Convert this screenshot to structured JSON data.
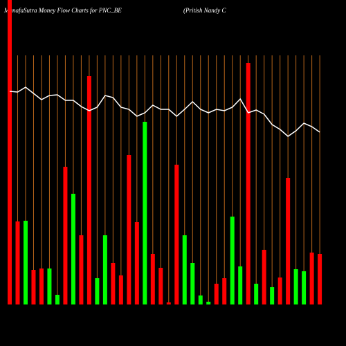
{
  "chart_data": {
    "type": "bar",
    "title": "MunafaSutra  Money Flow  Charts for PNC_BE",
    "subtitle": "(Pritish Nandy C",
    "ylim": [
      0,
      440
    ],
    "grid": true,
    "grid_color": "#b8651a",
    "series": [
      {
        "type": "bar",
        "colors": [
          "#ff0000",
          "#ff0000",
          "#00ff00",
          "#ff0000",
          "#ff0000",
          "#00ff00",
          "#00ff00",
          "#ff0000",
          "#00ff00",
          "#ff0000",
          "#ff0000",
          "#00ff00",
          "#00ff00",
          "#ff0000",
          "#ff0000",
          "#ff0000",
          "#ff0000",
          "#00ff00",
          "#ff0000",
          "#ff0000",
          "#ff0000",
          "#ff0000",
          "#00ff00",
          "#00ff00",
          "#00ff00",
          "#00ff00",
          "#ff0000",
          "#ff0000",
          "#00ff00",
          "#00ff00",
          "#ff0000",
          "#00ff00",
          "#ff0000",
          "#00ff00",
          "#ff0000",
          "#ff0000",
          "#00ff00",
          "#00ff00",
          "#ff0000",
          "#ff0000"
        ],
        "values": [
          450,
          120,
          121,
          50,
          52,
          52,
          14,
          199,
          160,
          100,
          330,
          38,
          100,
          60,
          42,
          216,
          119,
          264,
          73,
          53,
          3,
          202,
          100,
          60,
          13,
          4,
          30,
          38,
          127,
          55,
          349,
          30,
          79,
          25,
          39,
          183,
          51,
          48,
          75,
          73
        ]
      },
      {
        "type": "line",
        "color": "#ffffff",
        "values": [
          308,
          307,
          314,
          305,
          296,
          302,
          303,
          295,
          295,
          286,
          280,
          285,
          302,
          299,
          285,
          282,
          272,
          277,
          288,
          282,
          282,
          272,
          282,
          293,
          282,
          277,
          282,
          280,
          285,
          297,
          277,
          281,
          275,
          260,
          253,
          243,
          251,
          262,
          257,
          249
        ]
      }
    ]
  }
}
